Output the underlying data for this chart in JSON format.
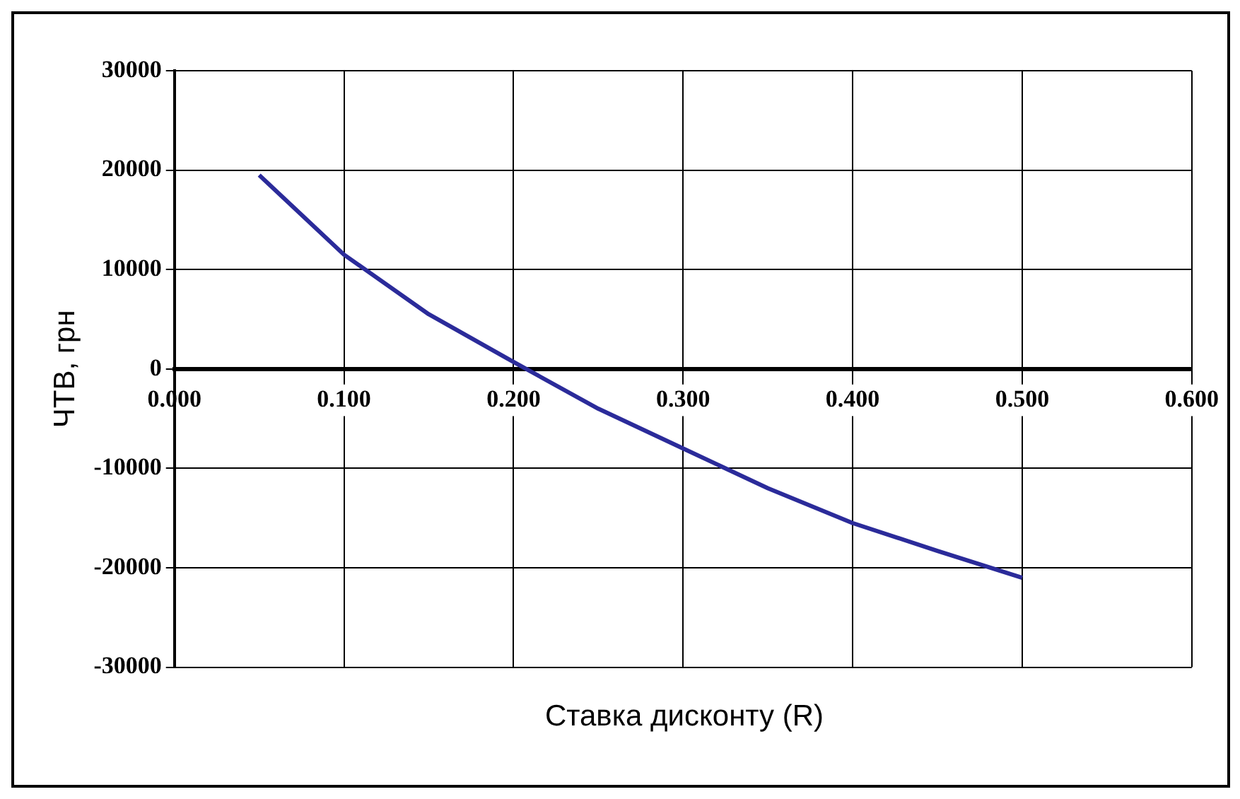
{
  "chart_data": {
    "type": "line",
    "xlabel": "Ставка дисконту (R)",
    "ylabel": "ЧТВ, грн",
    "x": [
      0.05,
      0.1,
      0.15,
      0.2,
      0.25,
      0.3,
      0.35,
      0.4,
      0.45,
      0.5
    ],
    "series": [
      {
        "color": "#2b2b9a",
        "values": [
          19500,
          11500,
          5500,
          700,
          -4000,
          -8000,
          -12000,
          -15500,
          -18300,
          -21000
        ]
      }
    ],
    "xlim": [
      0,
      0.6
    ],
    "xticks": [
      {
        "value": 0,
        "label": "0.000"
      },
      {
        "value": 0.1,
        "label": "0.100"
      },
      {
        "value": 0.2,
        "label": "0.200"
      },
      {
        "value": 0.3,
        "label": "0.300"
      },
      {
        "value": 0.4,
        "label": "0.400"
      },
      {
        "value": 0.5,
        "label": "0.500"
      },
      {
        "value": 0.6,
        "label": "0.600"
      }
    ],
    "ylim": [
      -30000,
      30000
    ],
    "yticks": [
      -30000,
      -20000,
      -10000,
      0,
      10000,
      20000,
      30000
    ],
    "grid": true,
    "legend": false,
    "marker": "none",
    "line_style": "solid"
  }
}
